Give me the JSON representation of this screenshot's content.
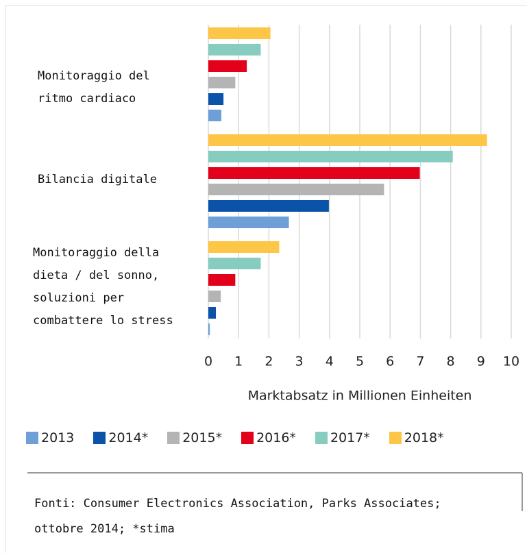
{
  "chart_data": {
    "type": "bar",
    "orientation": "horizontal",
    "categories": [
      "Monitoraggio del ritmo cardiaco",
      "Bilancia digitale",
      "Monitoraggio della dieta / del sonno, soluzioni per combattere lo stress"
    ],
    "series": [
      {
        "name": "2013",
        "color": "#6f9fd8",
        "values": [
          0.43,
          2.66,
          0.05
        ]
      },
      {
        "name": "2014*",
        "color": "#0a53a8",
        "values": [
          0.5,
          3.98,
          0.25
        ]
      },
      {
        "name": "2015*",
        "color": "#b4b4b4",
        "values": [
          0.89,
          5.8,
          0.41
        ]
      },
      {
        "name": "2016*",
        "color": "#e2001a",
        "values": [
          1.27,
          6.98,
          0.89
        ]
      },
      {
        "name": "2017*",
        "color": "#87cdbf",
        "values": [
          1.73,
          8.07,
          1.73
        ]
      },
      {
        "name": "2018*",
        "color": "#fdc646",
        "values": [
          2.05,
          9.2,
          2.34
        ]
      }
    ],
    "xlabel": "Marktabsatz in Millionen Einheiten",
    "xlim": [
      0,
      10
    ],
    "xticks": [
      0,
      1,
      2,
      3,
      4,
      5,
      6,
      7,
      8,
      9,
      10
    ],
    "grid": true,
    "legend": "bottom",
    "source": "Fonti: Consumer Electronics Association, Parks Associates; ottobre 2014; *stima"
  }
}
